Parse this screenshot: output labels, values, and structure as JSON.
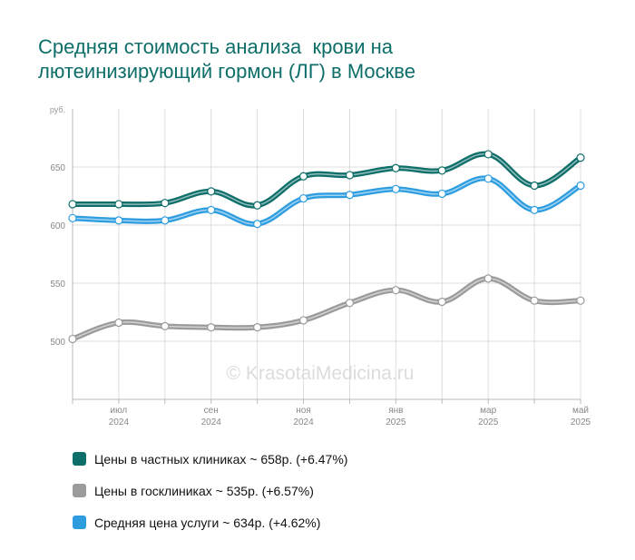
{
  "title": {
    "line1": "Средняя стоимость анализа  крови на",
    "line2": "лютеинизирующий гормон (ЛГ) в Москве"
  },
  "watermark": "© KrasotaiMedicina.ru",
  "chart_data": {
    "type": "line",
    "y_unit": "руб.",
    "ylim": [
      450,
      700
    ],
    "yticks": [
      500,
      550,
      600,
      650
    ],
    "x_count": 12,
    "x_ticks": [
      {
        "index": 1,
        "month": "июл",
        "year": "2024"
      },
      {
        "index": 3,
        "month": "сен",
        "year": "2024"
      },
      {
        "index": 5,
        "month": "ноя",
        "year": "2024"
      },
      {
        "index": 7,
        "month": "янв",
        "year": "2025"
      },
      {
        "index": 9,
        "month": "мар",
        "year": "2025"
      },
      {
        "index": 11,
        "month": "май",
        "year": "2025"
      }
    ],
    "grid": true,
    "legend_position": "bottom",
    "series": [
      {
        "key": "private",
        "color": "#0e6e6a",
        "values": [
          618,
          618,
          619,
          629,
          617,
          642,
          643,
          649,
          647,
          661,
          634,
          658
        ]
      },
      {
        "key": "avg",
        "color": "#2e9de0",
        "values": [
          606,
          604,
          604,
          613,
          601,
          623,
          626,
          631,
          627,
          640,
          613,
          634
        ]
      },
      {
        "key": "public",
        "color": "#9b9b9b",
        "values": [
          502,
          516,
          513,
          512,
          512,
          518,
          533,
          544,
          534,
          554,
          535,
          535
        ]
      }
    ]
  },
  "legend": [
    {
      "label": "Цены в частных клиниках ~ 658р. (+6.47%)",
      "color": "#0e6e6a"
    },
    {
      "label": "Цены в госклиниках ~ 535р. (+6.57%)",
      "color": "#9b9b9b"
    },
    {
      "label": "Средняя цена услуги ~ 634р. (+4.62%)",
      "color": "#2e9de0"
    }
  ]
}
